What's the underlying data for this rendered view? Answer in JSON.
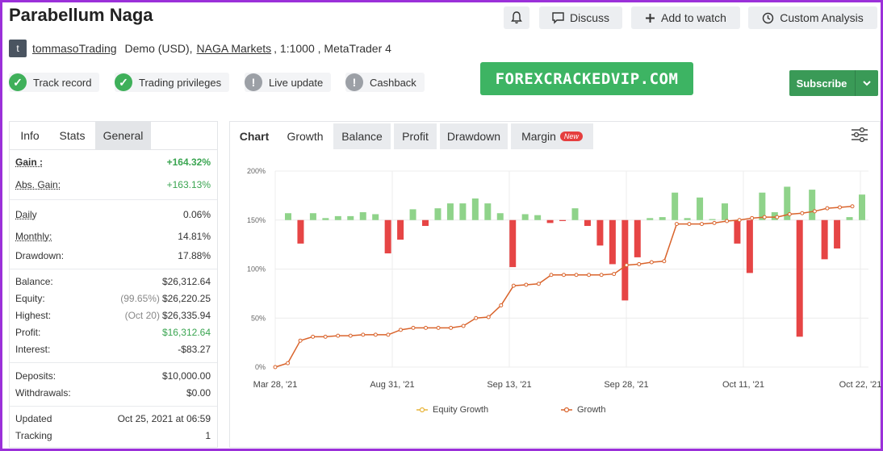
{
  "header": {
    "title": "Parabellum Naga",
    "bell_icon": "bell-icon",
    "discuss_label": "Discuss",
    "watch_label": "Add to watch",
    "analysis_label": "Custom Analysis"
  },
  "meta": {
    "avatar_letter": "t",
    "username": "tommasoTrading",
    "account_type": "Demo (USD),",
    "broker": "NAGA Markets",
    "leverage_platform": ", 1:1000 , MetaTrader 4"
  },
  "badges": [
    {
      "label": "Track record",
      "status": "ok"
    },
    {
      "label": "Trading privileges",
      "status": "ok"
    },
    {
      "label": "Live update",
      "status": "warn"
    },
    {
      "label": "Cashback",
      "status": "warn"
    }
  ],
  "watermark": "FOREXCRACKEDVIP.COM",
  "subscribe_label": "Subscribe",
  "left_tabs": [
    "Info",
    "Stats",
    "General"
  ],
  "stats": {
    "gain": {
      "label": "Gain :",
      "value": "+164.32%"
    },
    "abs_gain": {
      "label": "Abs. Gain:",
      "value": "+163.13%"
    },
    "daily": {
      "label": "Daily",
      "value": "0.06%"
    },
    "monthly": {
      "label": "Monthly:",
      "value": "14.81%"
    },
    "drawdown": {
      "label": "Drawdown:",
      "value": "17.88%"
    },
    "balance": {
      "label": "Balance:",
      "value": "$26,312.64"
    },
    "equity": {
      "label": "Equity:",
      "pre": "(99.65%)",
      "value": "$26,220.25"
    },
    "highest": {
      "label": "Highest:",
      "pre": "(Oct 20)",
      "value": "$26,335.94"
    },
    "profit": {
      "label": "Profit:",
      "value": "$16,312.64"
    },
    "interest": {
      "label": "Interest:",
      "value": "-$83.27"
    },
    "deposits": {
      "label": "Deposits:",
      "value": "$10,000.00"
    },
    "withdrawals": {
      "label": "Withdrawals:",
      "value": "$0.00"
    },
    "updated": {
      "label": "Updated",
      "value": "Oct 25, 2021 at 06:59"
    },
    "tracking": {
      "label": "Tracking",
      "value": "1"
    }
  },
  "chart_tabs": {
    "chart": "Chart",
    "growth": "Growth",
    "balance": "Balance",
    "profit": "Profit",
    "drawdown": "Drawdown",
    "margin": "Margin",
    "new_badge": "New"
  },
  "colors": {
    "positive_bar": "#8fd38a",
    "negative_bar": "#e64545",
    "growth_line": "#d9632b",
    "equity_line": "#e8b43a",
    "accent_green": "#3aa551"
  },
  "chart_data": {
    "type": "bar+line",
    "y_ticks": [
      "0%",
      "50%",
      "100%",
      "150%",
      "200%"
    ],
    "ylim": [
      0,
      200
    ],
    "x_tick_labels": [
      "Mar 28, '21",
      "Aug 31, '21",
      "Sep 13, '21",
      "Sep 28, '21",
      "Oct 11, '21",
      "Oct 22, '21"
    ],
    "bar_baseline": 150,
    "bar_values": [
      7,
      -24,
      7,
      2,
      4,
      4,
      8,
      6,
      -34,
      -20,
      11,
      -6,
      12,
      17,
      17,
      22,
      17,
      7,
      -48,
      6,
      5,
      -3,
      -1,
      12,
      -6,
      -26,
      -45,
      -82,
      -38,
      2,
      3,
      28,
      2,
      23,
      1,
      17,
      -24,
      -54,
      28,
      8,
      34,
      -119,
      31,
      -40,
      -29,
      3,
      26
    ],
    "growth": [
      0,
      4,
      27,
      31,
      31,
      32,
      32,
      33,
      33,
      33,
      38,
      40,
      40,
      40,
      40,
      42,
      50,
      51,
      63,
      83,
      84,
      85,
      94,
      94,
      94,
      94,
      94,
      95,
      104,
      105,
      107,
      108,
      146,
      146,
      146,
      147,
      149,
      150,
      152,
      153,
      153,
      156,
      157,
      159,
      162,
      163,
      164
    ],
    "series": [
      {
        "name": "Equity Growth",
        "color": "#e8b43a"
      },
      {
        "name": "Growth",
        "color": "#d9632b"
      }
    ]
  }
}
